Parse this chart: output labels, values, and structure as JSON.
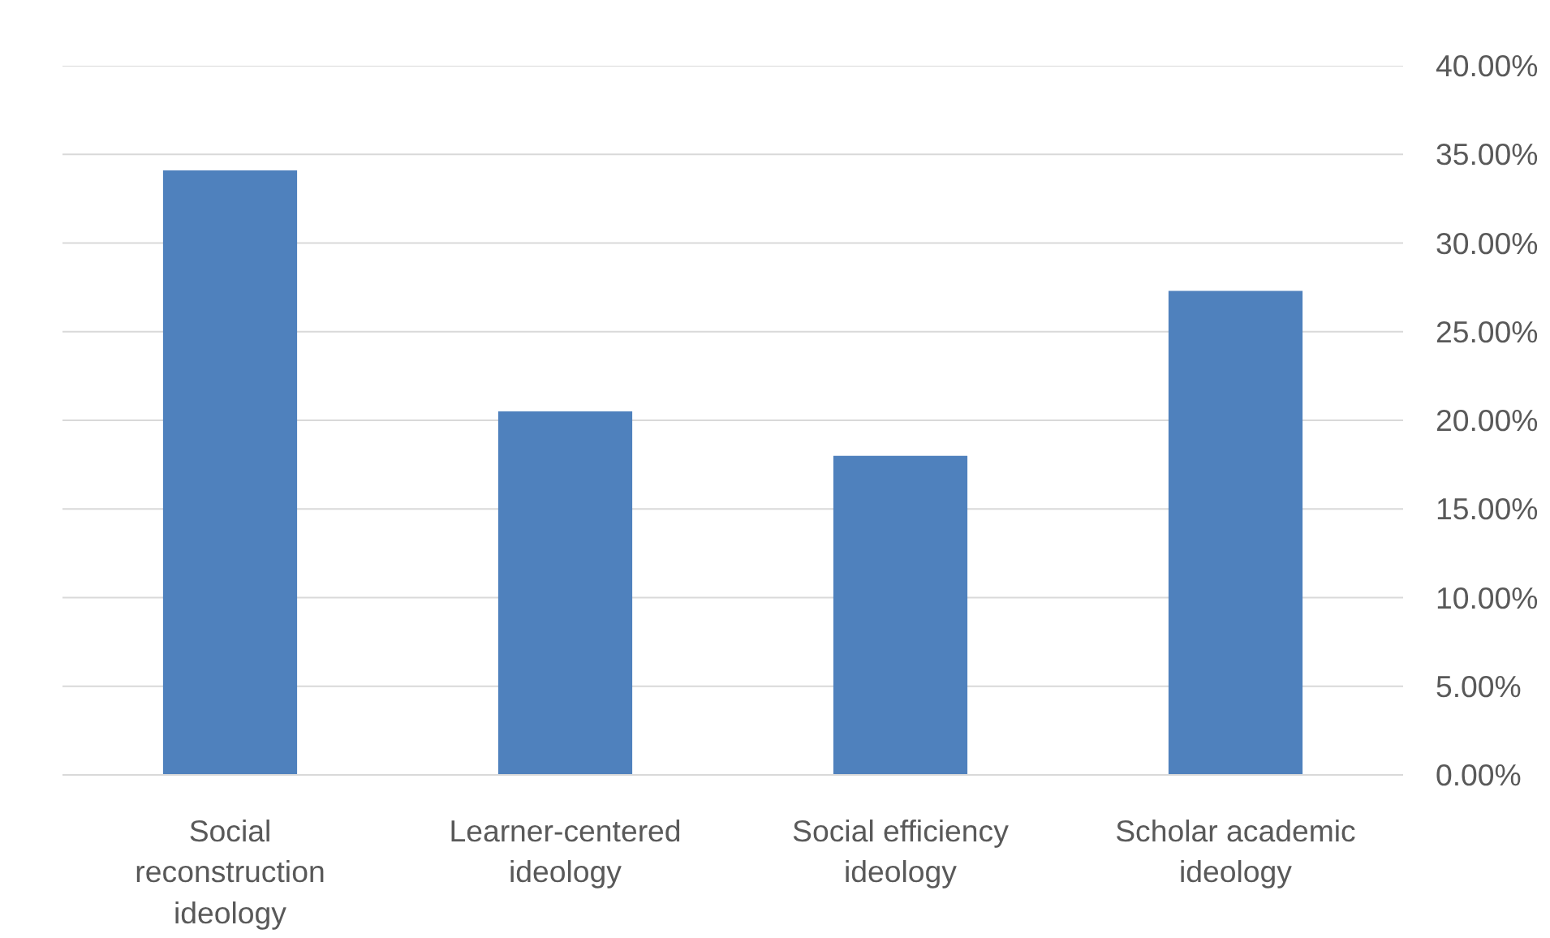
{
  "chart_data": {
    "type": "bar",
    "categories": [
      "Social reconstruction ideology",
      "Learner-centered ideology",
      "Social efficiency ideology",
      "Scholar academic ideology"
    ],
    "values": [
      34.1,
      20.5,
      18.0,
      27.3
    ],
    "color": "#4f81bd",
    "ylim": [
      0,
      40
    ],
    "yticks": [
      {
        "value": 0,
        "label": "0.00%"
      },
      {
        "value": 5,
        "label": "5.00%"
      },
      {
        "value": 10,
        "label": "10.00%"
      },
      {
        "value": 15,
        "label": "15.00%"
      },
      {
        "value": 20,
        "label": "20.00%"
      },
      {
        "value": 25,
        "label": "25.00%"
      },
      {
        "value": 30,
        "label": "30.00%"
      },
      {
        "value": 35,
        "label": "35.00%"
      },
      {
        "value": 40,
        "label": "40.00%"
      }
    ],
    "grid": "y"
  }
}
